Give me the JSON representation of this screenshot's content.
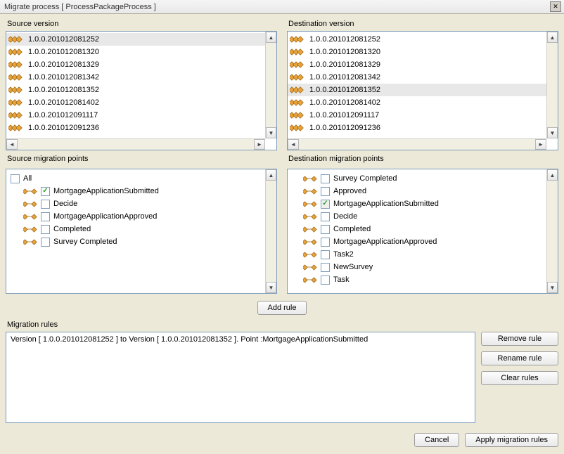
{
  "window": {
    "title": "Migrate process [ ProcessPackageProcess ]"
  },
  "source": {
    "label": "Source version",
    "versions": [
      "1.0.0.201012081252",
      "1.0.0.201012081320",
      "1.0.0.201012081329",
      "1.0.0.201012081342",
      "1.0.0.201012081352",
      "1.0.0.201012081402",
      "1.0.0.201012091117",
      "1.0.0.201012091236"
    ],
    "selected_index": 0,
    "points_label": "Source migration points",
    "all_label": "All",
    "all_checked": false,
    "points": [
      {
        "label": "MortgageApplicationSubmitted",
        "checked": true
      },
      {
        "label": "Decide",
        "checked": false
      },
      {
        "label": "MortgageApplicationApproved",
        "checked": false
      },
      {
        "label": "Completed",
        "checked": false
      },
      {
        "label": "Survey Completed",
        "checked": false
      }
    ]
  },
  "destination": {
    "label": "Destination version",
    "versions": [
      "1.0.0.201012081252",
      "1.0.0.201012081320",
      "1.0.0.201012081329",
      "1.0.0.201012081342",
      "1.0.0.201012081352",
      "1.0.0.201012081402",
      "1.0.0.201012091117",
      "1.0.0.201012091236"
    ],
    "selected_index": 4,
    "points_label": "Destination migration points",
    "points": [
      {
        "label": "Survey Completed",
        "checked": false
      },
      {
        "label": "Approved",
        "checked": false
      },
      {
        "label": "MortgageApplicationSubmitted",
        "checked": true,
        "readonly": true
      },
      {
        "label": "Decide",
        "checked": false
      },
      {
        "label": "Completed",
        "checked": false
      },
      {
        "label": "MortgageApplicationApproved",
        "checked": false
      },
      {
        "label": "Task2",
        "checked": false
      },
      {
        "label": "NewSurvey",
        "checked": false
      },
      {
        "label": "Task",
        "checked": false
      }
    ]
  },
  "buttons": {
    "add_rule": "Add rule",
    "remove_rule": "Remove rule",
    "rename_rule": "Rename rule",
    "clear_rules": "Clear rules",
    "cancel": "Cancel",
    "apply": "Apply migration rules"
  },
  "rules": {
    "label": "Migration rules",
    "items": [
      "Version [ 1.0.0.201012081252 ] to Version [ 1.0.0.201012081352 ]. Point :MortgageApplicationSubmitted"
    ]
  },
  "colors": {
    "bg": "#ece9d8",
    "border": "#7f9db9",
    "icon_node": "#e8a33d",
    "icon_outline": "#a06a14",
    "selection": "#e8e8e8"
  }
}
